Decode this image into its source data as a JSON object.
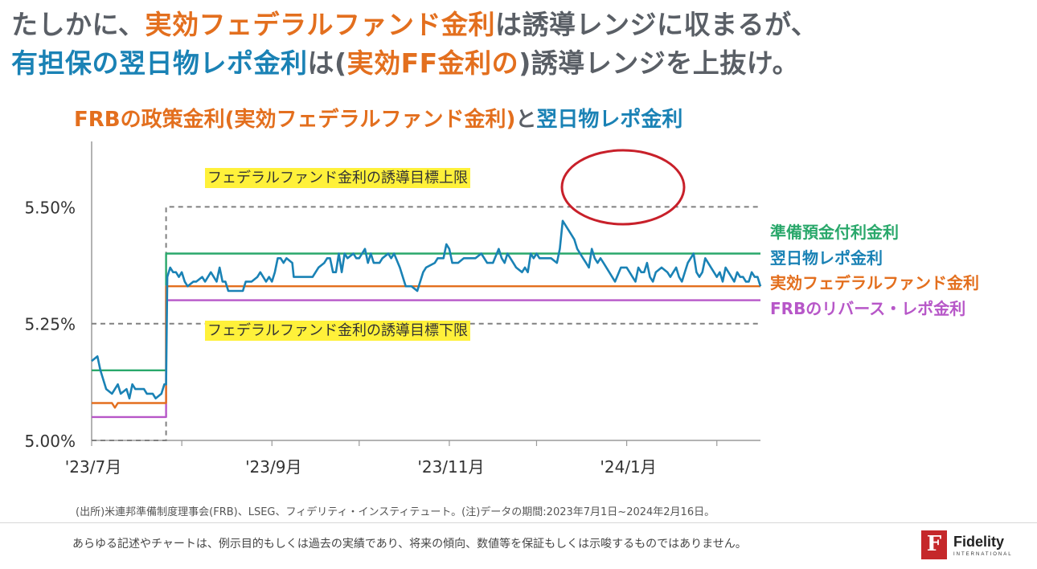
{
  "headline": {
    "line1": [
      {
        "text": "たしかに、",
        "color": "gray"
      },
      {
        "text": "実効フェデラルファンド金利",
        "color": "orange"
      },
      {
        "text": "は誘導レンジに収まるが、",
        "color": "gray"
      }
    ],
    "line2": [
      {
        "text": "有担保の翌日物レポ金利",
        "color": "blue"
      },
      {
        "text": "は(",
        "color": "gray"
      },
      {
        "text": "実効FF金利の",
        "color": "orange"
      },
      {
        "text": ")誘導レンジを上抜け。",
        "color": "gray"
      }
    ]
  },
  "subtitle": [
    {
      "text": "FRBの政策金利(実効フェデラルファンド金利)",
      "color": "orange"
    },
    {
      "text": "と",
      "color": "gray"
    },
    {
      "text": "翌日物レポ金利",
      "color": "blue"
    }
  ],
  "colors": {
    "gray": "#5a5f66",
    "orange": "#e36f1e",
    "blue": "#1a82b5",
    "green": "#2aa86b",
    "purple": "#b757c8",
    "dashed": "#808080",
    "highlight": "#fff13a",
    "circle": "#c8202a",
    "axis": "#9a9a9a"
  },
  "chart_data": {
    "type": "line",
    "xlabel": "",
    "ylabel": "",
    "x_ticks": [
      "'23/7月",
      "'23/9月",
      "'23/11月",
      "'24/1月"
    ],
    "y_ticks": [
      "5.00%",
      "5.25%",
      "5.50%"
    ],
    "ylim": [
      5.0,
      5.64
    ],
    "x_range_days": [
      0,
      230
    ],
    "grid": false,
    "annotations": {
      "upper_label": "フェデラルファンド金利の誘導目標上限",
      "lower_label": "フェデラルファンド金利の誘導目標下限",
      "circle_note": "repo spike around end of December 2023"
    },
    "target_range": {
      "upper": [
        {
          "x": 0,
          "y": 5.25
        },
        {
          "x": 25.6,
          "y": 5.25
        },
        {
          "x": 25.6,
          "y": 5.5
        },
        {
          "x": 230,
          "y": 5.5
        }
      ],
      "lower": [
        {
          "x": 0,
          "y": 5.0
        },
        {
          "x": 25.6,
          "y": 5.0
        },
        {
          "x": 25.6,
          "y": 5.25
        },
        {
          "x": 230,
          "y": 5.25
        }
      ]
    },
    "series": [
      {
        "name": "準備預金付利金利",
        "color": "green",
        "points": [
          [
            0,
            5.15
          ],
          [
            25.6,
            5.15
          ],
          [
            25.6,
            5.4
          ],
          [
            230,
            5.4
          ]
        ]
      },
      {
        "name": "翌日物レポ金利",
        "color": "blue",
        "points": [
          [
            0,
            5.17
          ],
          [
            2,
            5.18
          ],
          [
            3,
            5.15
          ],
          [
            5,
            5.11
          ],
          [
            7,
            5.1
          ],
          [
            9,
            5.12
          ],
          [
            10,
            5.1
          ],
          [
            12,
            5.11
          ],
          [
            13,
            5.09
          ],
          [
            14,
            5.12
          ],
          [
            15,
            5.11
          ],
          [
            18,
            5.11
          ],
          [
            19,
            5.1
          ],
          [
            21,
            5.1
          ],
          [
            22,
            5.09
          ],
          [
            24,
            5.1
          ],
          [
            25,
            5.12
          ],
          [
            25.6,
            5.12
          ],
          [
            26,
            5.35
          ],
          [
            27,
            5.37
          ],
          [
            28,
            5.36
          ],
          [
            29,
            5.36
          ],
          [
            30,
            5.35
          ],
          [
            31,
            5.36
          ],
          [
            32,
            5.34
          ],
          [
            33,
            5.33
          ],
          [
            35,
            5.34
          ],
          [
            36,
            5.34
          ],
          [
            38,
            5.35
          ],
          [
            39,
            5.34
          ],
          [
            40,
            5.35
          ],
          [
            41,
            5.36
          ],
          [
            43,
            5.34
          ],
          [
            44,
            5.37
          ],
          [
            45,
            5.34
          ],
          [
            46,
            5.34
          ],
          [
            47,
            5.32
          ],
          [
            48,
            5.32
          ],
          [
            52,
            5.32
          ],
          [
            53,
            5.34
          ],
          [
            55,
            5.34
          ],
          [
            57,
            5.35
          ],
          [
            58,
            5.36
          ],
          [
            60,
            5.34
          ],
          [
            61,
            5.35
          ],
          [
            62,
            5.34
          ],
          [
            63,
            5.36
          ],
          [
            64,
            5.39
          ],
          [
            65,
            5.39
          ],
          [
            66,
            5.38
          ],
          [
            67,
            5.39
          ],
          [
            69,
            5.38
          ],
          [
            69.5,
            5.35
          ],
          [
            76,
            5.35
          ],
          [
            78,
            5.37
          ],
          [
            80,
            5.38
          ],
          [
            81,
            5.39
          ],
          [
            82,
            5.39
          ],
          [
            83,
            5.36
          ],
          [
            84,
            5.36
          ],
          [
            85,
            5.4
          ],
          [
            86,
            5.36
          ],
          [
            87,
            5.4
          ],
          [
            88,
            5.39
          ],
          [
            90,
            5.4
          ],
          [
            91,
            5.39
          ],
          [
            92,
            5.39
          ],
          [
            93,
            5.4
          ],
          [
            94,
            5.41
          ],
          [
            95,
            5.38
          ],
          [
            96,
            5.4
          ],
          [
            97,
            5.38
          ],
          [
            99,
            5.38
          ],
          [
            100,
            5.39
          ],
          [
            102,
            5.4
          ],
          [
            103,
            5.39
          ],
          [
            104,
            5.4
          ],
          [
            106,
            5.37
          ],
          [
            108,
            5.33
          ],
          [
            110,
            5.33
          ],
          [
            112,
            5.32
          ],
          [
            114,
            5.36
          ],
          [
            115,
            5.37
          ],
          [
            118,
            5.38
          ],
          [
            119,
            5.39
          ],
          [
            121,
            5.39
          ],
          [
            122,
            5.42
          ],
          [
            123,
            5.41
          ],
          [
            124,
            5.38
          ],
          [
            126,
            5.38
          ],
          [
            128,
            5.39
          ],
          [
            132,
            5.39
          ],
          [
            134,
            5.4
          ],
          [
            136,
            5.38
          ],
          [
            138,
            5.38
          ],
          [
            140,
            5.41
          ],
          [
            141,
            5.39
          ],
          [
            142,
            5.38
          ],
          [
            143,
            5.4
          ],
          [
            144,
            5.39
          ],
          [
            145,
            5.38
          ],
          [
            146,
            5.37
          ],
          [
            148,
            5.36
          ],
          [
            149,
            5.37
          ],
          [
            150,
            5.36
          ],
          [
            151,
            5.4
          ],
          [
            152,
            5.39
          ],
          [
            153,
            5.4
          ],
          [
            154,
            5.39
          ],
          [
            155,
            5.39
          ],
          [
            158,
            5.39
          ],
          [
            160,
            5.38
          ],
          [
            161,
            5.41
          ],
          [
            162,
            5.47
          ],
          [
            165,
            5.44
          ],
          [
            166,
            5.43
          ],
          [
            167,
            5.41
          ],
          [
            168,
            5.4
          ],
          [
            169,
            5.39
          ],
          [
            170,
            5.38
          ],
          [
            171,
            5.37
          ],
          [
            172,
            5.41
          ],
          [
            173,
            5.39
          ],
          [
            174,
            5.38
          ],
          [
            175,
            5.39
          ],
          [
            176,
            5.38
          ],
          [
            178,
            5.36
          ],
          [
            179,
            5.35
          ],
          [
            180,
            5.34
          ],
          [
            182,
            5.37
          ],
          [
            184,
            5.37
          ],
          [
            185,
            5.36
          ],
          [
            186,
            5.35
          ],
          [
            187,
            5.34
          ],
          [
            188,
            5.37
          ],
          [
            189,
            5.36
          ],
          [
            190,
            5.36
          ],
          [
            191,
            5.38
          ],
          [
            192,
            5.35
          ],
          [
            193,
            5.34
          ],
          [
            194,
            5.36
          ],
          [
            196,
            5.37
          ],
          [
            198,
            5.36
          ],
          [
            199,
            5.35
          ],
          [
            200,
            5.36
          ],
          [
            201,
            5.37
          ],
          [
            202,
            5.35
          ],
          [
            203,
            5.34
          ],
          [
            204,
            5.36
          ],
          [
            205,
            5.38
          ],
          [
            206,
            5.39
          ],
          [
            207,
            5.4
          ],
          [
            208,
            5.36
          ],
          [
            209,
            5.35
          ],
          [
            210,
            5.36
          ],
          [
            211,
            5.39
          ],
          [
            212,
            5.38
          ],
          [
            213,
            5.37
          ],
          [
            214,
            5.36
          ],
          [
            215,
            5.35
          ],
          [
            216,
            5.36
          ],
          [
            217,
            5.34
          ],
          [
            218,
            5.37
          ],
          [
            219,
            5.36
          ],
          [
            220,
            5.35
          ],
          [
            221,
            5.34
          ],
          [
            222,
            5.36
          ],
          [
            223,
            5.35
          ],
          [
            224,
            5.35
          ],
          [
            225,
            5.34
          ],
          [
            226,
            5.34
          ],
          [
            227,
            5.36
          ],
          [
            228,
            5.35
          ],
          [
            229,
            5.35
          ],
          [
            230,
            5.33
          ]
        ]
      },
      {
        "name": "実効フェデラルファンド金利",
        "color": "orange",
        "points": [
          [
            0,
            5.08
          ],
          [
            7,
            5.08
          ],
          [
            8,
            5.07
          ],
          [
            9,
            5.08
          ],
          [
            25.6,
            5.08
          ],
          [
            25.6,
            5.33
          ],
          [
            230,
            5.33
          ]
        ]
      },
      {
        "name": "FRBのリバース・レポ金利",
        "color": "purple",
        "points": [
          [
            0,
            5.05
          ],
          [
            25.6,
            5.05
          ],
          [
            25.6,
            5.3
          ],
          [
            230,
            5.3
          ]
        ]
      }
    ]
  },
  "source": "(出所)米連邦準備制度理事会(FRB)、LSEG、フィデリティ・インスティテュート。(注)データの期間:2023年7月1日~2024年2月16日。",
  "disclaimer": "あらゆる記述やチャートは、例示目的もしくは過去の実績であり、将来の傾向、数値等を保証もしくは示唆するものではありません。",
  "logo": {
    "name": "Fidelity",
    "sub": "INTERNATIONAL",
    "glyph": "F"
  }
}
